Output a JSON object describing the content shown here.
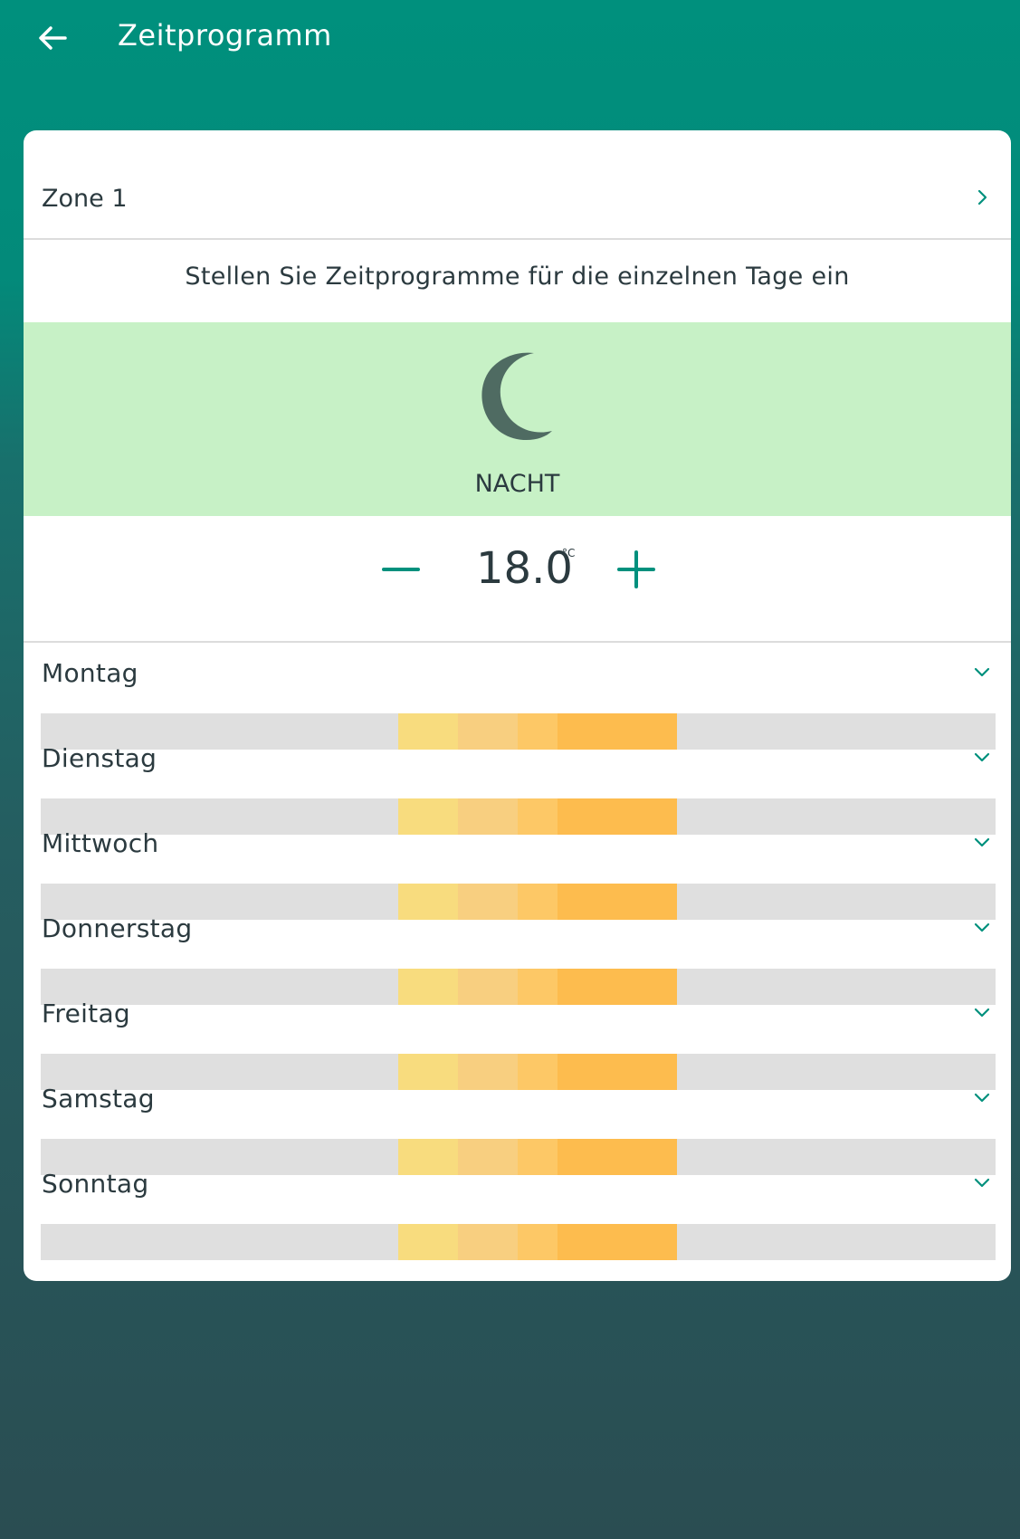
{
  "appbar": {
    "title": "Zeitprogramm",
    "back_icon": "arrow-left-icon"
  },
  "zone": {
    "label": "Zone 1",
    "chevron_icon": "chevron-right-icon"
  },
  "hint": "Stellen Sie Zeitprogramme für die einzelnen Tage ein",
  "mode": {
    "label": "NACHT",
    "icon": "moon-icon",
    "background": "#c7f1c6"
  },
  "temperature": {
    "value": "18.0",
    "unit": "°C"
  },
  "colors": {
    "accent": "#00907d",
    "bar_background": "#dfdfdf",
    "segments": [
      "#f8dc7e",
      "#f8cf80",
      "#fdc866",
      "#fdbc4e"
    ]
  },
  "days": [
    {
      "label": "Montag"
    },
    {
      "label": "Dienstag"
    },
    {
      "label": "Mittwoch"
    },
    {
      "label": "Donnerstag"
    },
    {
      "label": "Freitag"
    },
    {
      "label": "Samstag"
    },
    {
      "label": "Sonntag"
    }
  ]
}
